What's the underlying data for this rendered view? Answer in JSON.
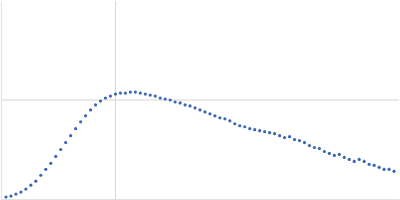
{
  "chart_data": {
    "type": "scatter",
    "x": [
      0.005,
      0.01,
      0.015,
      0.02,
      0.025,
      0.03,
      0.035,
      0.04,
      0.045,
      0.05,
      0.055,
      0.06,
      0.065,
      0.07,
      0.075,
      0.08,
      0.085,
      0.09,
      0.095,
      0.1,
      0.105,
      0.11,
      0.115,
      0.12,
      0.125,
      0.13,
      0.135,
      0.14,
      0.145,
      0.15,
      0.155,
      0.16,
      0.165,
      0.17,
      0.175,
      0.18,
      0.185,
      0.19,
      0.195,
      0.2,
      0.205,
      0.21,
      0.215,
      0.22,
      0.225,
      0.23,
      0.235,
      0.24,
      0.245,
      0.25,
      0.255,
      0.26,
      0.265,
      0.27,
      0.275,
      0.28,
      0.285,
      0.29,
      0.295,
      0.3,
      0.305,
      0.31,
      0.315,
      0.32,
      0.325,
      0.33,
      0.335,
      0.34,
      0.345,
      0.35,
      0.355,
      0.36,
      0.365,
      0.37,
      0.375,
      0.38,
      0.385,
      0.39,
      0.395
    ],
    "values": [
      0.02,
      0.03,
      0.05,
      0.07,
      0.1,
      0.14,
      0.18,
      0.24,
      0.3,
      0.36,
      0.43,
      0.5,
      0.57,
      0.64,
      0.71,
      0.78,
      0.84,
      0.9,
      0.95,
      0.99,
      1.02,
      1.04,
      1.06,
      1.07,
      1.07,
      1.08,
      1.08,
      1.07,
      1.06,
      1.05,
      1.04,
      1.02,
      1.01,
      1.0,
      0.98,
      0.97,
      0.95,
      0.94,
      0.92,
      0.9,
      0.88,
      0.86,
      0.84,
      0.82,
      0.81,
      0.79,
      0.76,
      0.74,
      0.73,
      0.71,
      0.7,
      0.69,
      0.68,
      0.67,
      0.66,
      0.64,
      0.62,
      0.63,
      0.6,
      0.59,
      0.57,
      0.54,
      0.52,
      0.51,
      0.48,
      0.46,
      0.44,
      0.45,
      0.42,
      0.4,
      0.38,
      0.4,
      0.38,
      0.35,
      0.34,
      0.32,
      0.3,
      0.3,
      0.28
    ],
    "errors": [
      0.003,
      0.003,
      0.003,
      0.003,
      0.003,
      0.003,
      0.003,
      0.003,
      0.003,
      0.003,
      0.003,
      0.003,
      0.003,
      0.003,
      0.003,
      0.003,
      0.003,
      0.003,
      0.003,
      0.003,
      0.003,
      0.003,
      0.003,
      0.003,
      0.003,
      0.003,
      0.003,
      0.003,
      0.003,
      0.003,
      0.003,
      0.003,
      0.003,
      0.003,
      0.003,
      0.003,
      0.003,
      0.003,
      0.003,
      0.003,
      0.005,
      0.005,
      0.005,
      0.005,
      0.005,
      0.005,
      0.005,
      0.005,
      0.005,
      0.005,
      0.008,
      0.008,
      0.008,
      0.008,
      0.008,
      0.008,
      0.008,
      0.008,
      0.008,
      0.008,
      0.012,
      0.012,
      0.012,
      0.012,
      0.012,
      0.012,
      0.012,
      0.012,
      0.012,
      0.012,
      0.018,
      0.018,
      0.018,
      0.018,
      0.018,
      0.018,
      0.018,
      0.018,
      0.018
    ],
    "color": "#3a66b5",
    "xlim": [
      0,
      0.4
    ],
    "ylim": [
      0,
      2
    ],
    "xticks": [
      0.115
    ],
    "yticks": [
      1
    ],
    "grid": true,
    "tick_labels": false
  }
}
